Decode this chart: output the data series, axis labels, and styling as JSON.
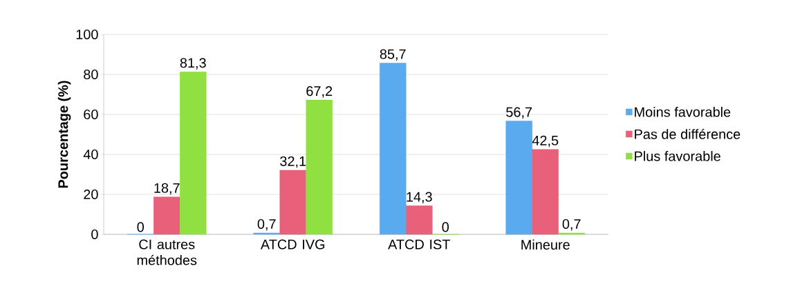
{
  "chart_data": {
    "type": "bar",
    "ylabel": "Pourcentage (%)",
    "categories": [
      "CI autres méthodes",
      "ATCD IVG",
      "ATCD IST",
      "Mineure"
    ],
    "series": [
      {
        "name": "Moins favorable",
        "color": "#5aaaf0",
        "values": [
          0,
          0.7,
          85.7,
          56.7
        ],
        "value_labels": [
          "0",
          "0,7",
          "85,7",
          "56,7"
        ]
      },
      {
        "name": "Pas de différence",
        "color": "#e8607a",
        "values": [
          18.7,
          32.1,
          14.3,
          42.5
        ],
        "value_labels": [
          "18,7",
          "32,1",
          "14,3",
          "42,5"
        ]
      },
      {
        "name": "Plus favorable",
        "color": "#8fe040",
        "values": [
          81.3,
          67.2,
          0,
          0.7
        ],
        "value_labels": [
          "81,3",
          "67,2",
          "0",
          "0,7"
        ]
      }
    ],
    "ylim": [
      0,
      100
    ],
    "yticks": [
      0,
      20,
      40,
      60,
      80,
      100
    ],
    "grid": "y",
    "legend": "right"
  }
}
